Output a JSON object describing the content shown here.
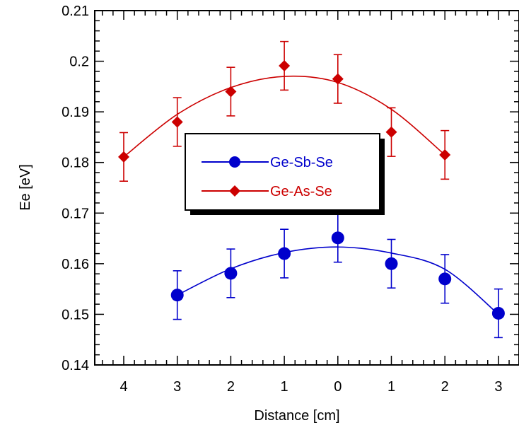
{
  "chart_data": {
    "type": "line",
    "title": "",
    "xlabel": "Distance [cm]",
    "ylabel": "Ee [eV]",
    "categories": [
      "4",
      "3",
      "2",
      "1",
      "0",
      "1",
      "2",
      "3"
    ],
    "y_ticks": [
      "0.14",
      "0.15",
      "0.16",
      "0.17",
      "0.18",
      "0.19",
      "0.2",
      "0.21"
    ],
    "ylim": [
      0.14,
      0.21
    ],
    "grid": false,
    "legend_position": "center",
    "error_bar": 0.0048,
    "series": [
      {
        "name": "Ge-Sb-Se",
        "color": "#0000cc",
        "marker": "circle",
        "values": [
          null,
          0.1538,
          0.1581,
          0.162,
          0.1651,
          0.16,
          0.157,
          0.1502
        ],
        "fit": [
          null,
          0.1538,
          0.159,
          0.1622,
          0.1633,
          0.1621,
          0.1589,
          0.15
        ]
      },
      {
        "name": "Ge-As-Se",
        "color": "#cc0000",
        "marker": "diamond",
        "values": [
          0.1811,
          0.188,
          0.194,
          0.1991,
          0.1965,
          0.186,
          0.1815,
          null
        ],
        "fit": [
          0.1811,
          0.1895,
          0.1948,
          0.197,
          0.1958,
          0.1905,
          0.1815,
          null
        ]
      }
    ]
  }
}
